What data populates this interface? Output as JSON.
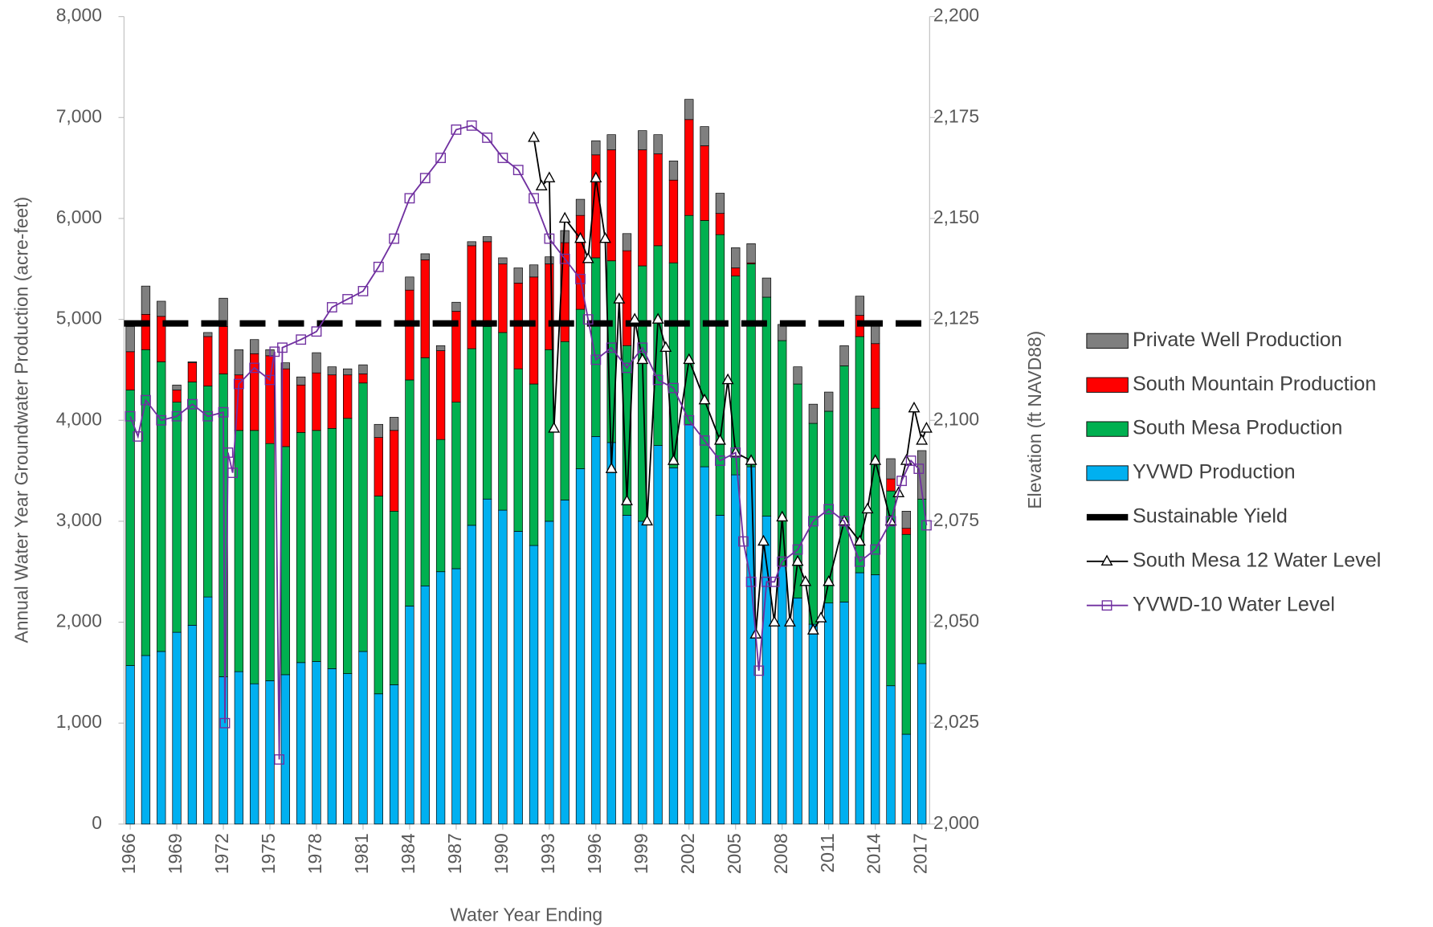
{
  "chart_data": {
    "type": "bar",
    "stacked": true,
    "xlabel": "Water Year Ending",
    "ylabel": "Annual Water Year Groundwater Production (acre-feet)",
    "y2label": "Elevation (ft NAVD88)",
    "x": [
      1966,
      1967,
      1968,
      1969,
      1970,
      1971,
      1972,
      1973,
      1974,
      1975,
      1976,
      1977,
      1978,
      1979,
      1980,
      1981,
      1982,
      1983,
      1984,
      1985,
      1986,
      1987,
      1988,
      1989,
      1990,
      1991,
      1992,
      1993,
      1994,
      1995,
      1996,
      1997,
      1998,
      1999,
      2000,
      2001,
      2002,
      2003,
      2004,
      2005,
      2006,
      2007,
      2008,
      2009,
      2010,
      2011,
      2012,
      2013,
      2014,
      2015,
      2016,
      2017
    ],
    "xlim": [
      1965.6,
      2017.5
    ],
    "xticks": [
      1966,
      1969,
      1972,
      1975,
      1978,
      1981,
      1984,
      1987,
      1990,
      1993,
      1996,
      1999,
      2002,
      2005,
      2008,
      2011,
      2014,
      2017
    ],
    "ylim": [
      0,
      8000
    ],
    "yticks": [
      0,
      {
        "value": 1000,
        "label": "1,000"
      },
      {
        "value": 2000,
        "label": "2,000"
      },
      {
        "value": 3000,
        "label": "3,000"
      },
      {
        "value": 4000,
        "label": "4,000"
      },
      {
        "value": 5000,
        "label": "5,000"
      },
      {
        "value": 6000,
        "label": "6,000"
      },
      {
        "value": 7000,
        "label": "7,000"
      },
      {
        "value": 8000,
        "label": "8,000"
      }
    ],
    "y2lim": [
      2000,
      2200
    ],
    "y2ticks": [
      {
        "value": 2000,
        "label": "2,000"
      },
      {
        "value": 2025,
        "label": "2,025"
      },
      {
        "value": 2050,
        "label": "2,050"
      },
      {
        "value": 2075,
        "label": "2,075"
      },
      {
        "value": 2100,
        "label": "2,100"
      },
      {
        "value": 2125,
        "label": "2,125"
      },
      {
        "value": 2150,
        "label": "2,150"
      },
      {
        "value": 2175,
        "label": "2,175"
      },
      {
        "value": 2200,
        "label": "2,200"
      }
    ],
    "legend": "right",
    "series": [
      {
        "name": "Private Well Production",
        "type": "bar",
        "color": "#7f7f7f",
        "values": [
          250,
          280,
          150,
          50,
          10,
          40,
          280,
          250,
          140,
          60,
          60,
          80,
          200,
          80,
          60,
          90,
          130,
          130,
          130,
          60,
          50,
          90,
          40,
          50,
          60,
          150,
          120,
          70,
          120,
          160,
          140,
          150,
          170,
          190,
          190,
          190,
          200,
          190,
          200,
          200,
          190,
          190,
          160,
          170,
          190,
          190,
          200,
          190,
          200,
          200,
          170,
          480
        ]
      },
      {
        "name": "South Mountain Production",
        "type": "bar",
        "color": "#ff0000",
        "values": [
          380,
          350,
          450,
          120,
          190,
          490,
          470,
          550,
          760,
          870,
          770,
          470,
          570,
          530,
          430,
          90,
          580,
          800,
          890,
          970,
          880,
          900,
          1020,
          840,
          680,
          850,
          1060,
          850,
          980,
          930,
          1020,
          1100,
          940,
          1150,
          910,
          820,
          950,
          740,
          210,
          80,
          10,
          0,
          0,
          0,
          0,
          0,
          0,
          210,
          640,
          120,
          60,
          0
        ]
      },
      {
        "name": "South Mesa Production",
        "type": "bar",
        "color": "#00b050",
        "values": [
          2730,
          3030,
          2870,
          2280,
          2410,
          2090,
          3000,
          2390,
          2510,
          2350,
          2260,
          2280,
          2290,
          2380,
          2530,
          2660,
          1960,
          1720,
          2240,
          2260,
          1310,
          1650,
          1750,
          1710,
          1760,
          1610,
          1600,
          1700,
          1570,
          1580,
          1770,
          1800,
          1680,
          2530,
          1980,
          2030,
          2070,
          2440,
          2780,
          1970,
          2010,
          2170,
          2230,
          2120,
          1990,
          1900,
          2340,
          2340,
          1650,
          1930,
          1980,
          1630
        ]
      },
      {
        "name": "YVWD Production",
        "type": "bar",
        "color": "#00b0f0",
        "values": [
          1570,
          1670,
          1710,
          1900,
          1970,
          2250,
          1460,
          1510,
          1390,
          1420,
          1480,
          1600,
          1610,
          1540,
          1490,
          1710,
          1290,
          1380,
          2160,
          2360,
          2500,
          2530,
          2960,
          3220,
          3110,
          2900,
          2760,
          3000,
          3210,
          3520,
          3840,
          3780,
          3060,
          3000,
          3750,
          3530,
          3960,
          3540,
          3060,
          3460,
          3540,
          3050,
          2560,
          2240,
          1980,
          2190,
          2200,
          2490,
          2470,
          1370,
          890,
          1590
        ]
      },
      {
        "name": "Sustainable Yield",
        "type": "line",
        "dash": true,
        "color": "#000000",
        "x": [
          1965.6,
          2017.5
        ],
        "values": [
          4960,
          4960
        ]
      },
      {
        "name": "South Mesa 12 Water Level",
        "type": "line",
        "axis": "y2",
        "marker": "triangle",
        "color": "#000000",
        "x": [
          1992,
          1992.5,
          1993,
          1993.3,
          1994,
          1995,
          1995.5,
          1996,
          1996.6,
          1997,
          1997.5,
          1998,
          1998.5,
          1999,
          1999.3,
          2000,
          2000.5,
          2001,
          2002,
          2003,
          2004,
          2004.5,
          2005,
          2006,
          2006.3,
          2006.8,
          2007.5,
          2008,
          2008.5,
          2009,
          2009.5,
          2010,
          2010.5,
          2011,
          2012,
          2013,
          2013.5,
          2014,
          2015,
          2015.5,
          2016,
          2016.5,
          2017,
          2017.3
        ],
        "values": [
          2170,
          2158,
          2160,
          2098,
          2150,
          2145,
          2140,
          2160,
          2145,
          2088,
          2130,
          2080,
          2125,
          2115,
          2075,
          2125,
          2118,
          2090,
          2115,
          2105,
          2095,
          2110,
          2092,
          2090,
          2047,
          2070,
          2050,
          2076,
          2050,
          2065,
          2060,
          2048,
          2051,
          2060,
          2075,
          2070,
          2078,
          2090,
          2075,
          2082,
          2090,
          2103,
          2095,
          2098
        ]
      },
      {
        "name": "YVWD-10 Water Level",
        "type": "line",
        "axis": "y2",
        "marker": "square",
        "color": "#7030a0",
        "x": [
          1966,
          1966.5,
          1967,
          1968,
          1969,
          1970,
          1971,
          1972,
          1972.1,
          1972.3,
          1972.6,
          1973,
          1974,
          1975,
          1975.3,
          1975.6,
          1975.8,
          1977,
          1978,
          1979,
          1980,
          1981,
          1982,
          1983,
          1984,
          1985,
          1986,
          1987,
          1988,
          1989,
          1990,
          1991,
          1992,
          1993,
          1994,
          1995,
          1995.5,
          1996,
          1997,
          1998,
          1999,
          2000,
          2001,
          2002,
          2003,
          2004,
          2005,
          2005.5,
          2006,
          2006.5,
          2007,
          2007.5,
          2008,
          2009,
          2010,
          2011,
          2012,
          2013,
          2014,
          2015,
          2015.7,
          2016.3,
          2016.8,
          2017.3
        ],
        "values": [
          2101,
          2096,
          2105,
          2100,
          2101,
          2104,
          2101,
          2102,
          2025,
          2092,
          2087,
          2109,
          2113,
          2110,
          2117,
          2016,
          2118,
          2120,
          2122,
          2128,
          2130,
          2132,
          2138,
          2145,
          2155,
          2160,
          2165,
          2172,
          2173,
          2170,
          2165,
          2162,
          2155,
          2145,
          2140,
          2135,
          2125,
          2115,
          2118,
          2113,
          2118,
          2110,
          2108,
          2100,
          2095,
          2090,
          2092,
          2070,
          2060,
          2038,
          2060,
          2060,
          2065,
          2068,
          2075,
          2078,
          2075,
          2065,
          2068,
          2075,
          2085,
          2090,
          2088,
          2074
        ]
      }
    ]
  }
}
